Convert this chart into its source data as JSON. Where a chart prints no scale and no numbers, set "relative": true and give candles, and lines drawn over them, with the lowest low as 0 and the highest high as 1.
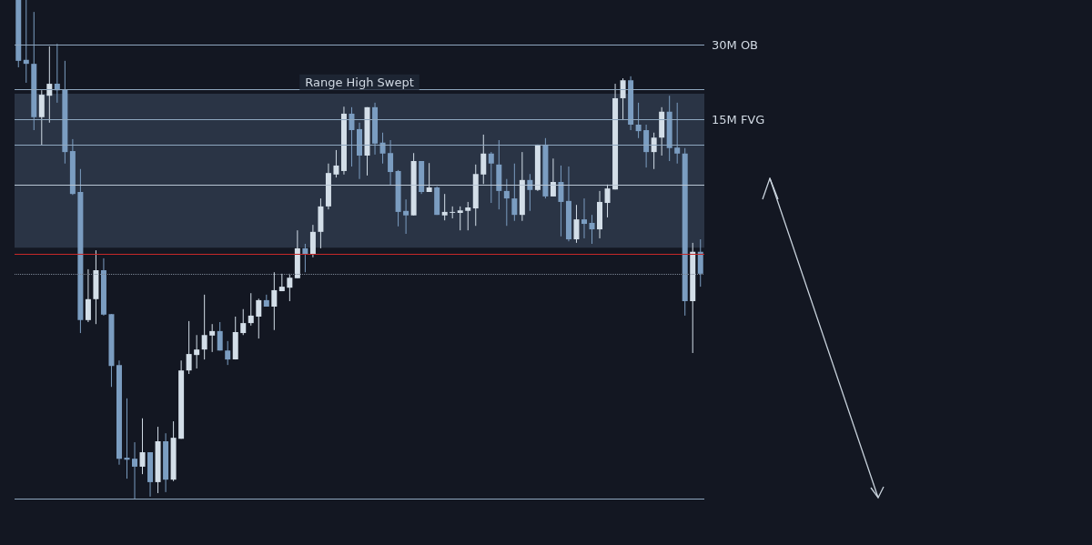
{
  "chart_data": {
    "type": "candlestick",
    "relative": true,
    "categories": [
      null,
      null,
      null,
      null,
      null,
      null,
      null,
      null,
      null,
      null,
      null,
      null,
      null,
      null,
      null,
      null,
      null,
      null,
      null,
      null,
      null,
      null,
      null,
      null,
      null,
      null,
      null,
      null,
      null,
      null,
      null,
      null,
      null,
      null,
      null,
      null,
      null,
      null,
      null,
      null,
      null,
      null,
      null,
      null,
      null,
      null,
      null,
      null,
      null,
      null,
      null,
      null,
      null,
      null,
      null,
      null,
      null,
      null,
      null,
      null,
      null,
      null,
      null,
      null,
      null,
      null,
      null,
      null,
      null,
      null,
      null,
      null,
      null,
      null,
      null,
      null,
      null,
      null,
      null,
      null,
      null,
      null,
      null,
      null,
      null,
      null,
      null,
      null,
      null
    ],
    "ohlc": [
      [
        1,
        1,
        0.865,
        0.878
      ],
      [
        0.88,
        1,
        0.834,
        0.872
      ],
      [
        0.872,
        0.976,
        0.739,
        0.765
      ],
      [
        0.765,
        0.819,
        0.708,
        0.81
      ],
      [
        0.808,
        0.907,
        0.754,
        0.832
      ],
      [
        0.832,
        0.912,
        0.794,
        0.819
      ],
      [
        0.821,
        0.878,
        0.672,
        0.695
      ],
      [
        0.697,
        0.721,
        0.609,
        0.611
      ],
      [
        0.615,
        0.661,
        0.332,
        0.358
      ],
      [
        0.358,
        0.46,
        0.354,
        0.4
      ],
      [
        0.4,
        0.498,
        0.35,
        0.458
      ],
      [
        0.458,
        0.482,
        0.367,
        0.369
      ],
      [
        0.37,
        0.37,
        0.224,
        0.266
      ],
      [
        0.268,
        0.277,
        0.068,
        0.08
      ],
      [
        0.082,
        0.201,
        0.04,
        0.078
      ],
      [
        0.08,
        0.113,
        0,
        0.064
      ],
      [
        0.064,
        0.161,
        0.049,
        0.093
      ],
      [
        0.093,
        0.093,
        0.004,
        0.033
      ],
      [
        0.033,
        0.144,
        0.011,
        0.115
      ],
      [
        0.115,
        0.131,
        0.013,
        0.038
      ],
      [
        0.038,
        0.155,
        0.035,
        0.122
      ],
      [
        0.12,
        0.277,
        0.12,
        0.257
      ],
      [
        0.257,
        0.356,
        0.25,
        0.29
      ],
      [
        0.288,
        0.328,
        0.261,
        0.299
      ],
      [
        0.299,
        0.409,
        0.279,
        0.328
      ],
      [
        0.327,
        0.35,
        0.294,
        0.336
      ],
      [
        0.336,
        0.354,
        0.297,
        0.297
      ],
      [
        0.297,
        0.316,
        0.268,
        0.279
      ],
      [
        0.279,
        0.365,
        0.279,
        0.334
      ],
      [
        0.332,
        0.38,
        0.328,
        0.352
      ],
      [
        0.352,
        0.412,
        0.347,
        0.367
      ],
      [
        0.365,
        0.401,
        0.321,
        0.398
      ],
      [
        0.398,
        0.409,
        0.385,
        0.385
      ],
      [
        0.385,
        0.454,
        0.338,
        0.418
      ],
      [
        0.416,
        0.451,
        0.416,
        0.425
      ],
      [
        0.423,
        0.451,
        0.396,
        0.443
      ],
      [
        0.442,
        0.538,
        0.442,
        0.502
      ],
      [
        0.502,
        0.511,
        0.454,
        0.489
      ],
      [
        0.489,
        0.549,
        0.484,
        0.535
      ],
      [
        0.535,
        0.602,
        0.502,
        0.586
      ],
      [
        0.586,
        0.672,
        0.58,
        0.653
      ],
      [
        0.65,
        0.699,
        0.644,
        0.668
      ],
      [
        0.657,
        0.786,
        0.65,
        0.772
      ],
      [
        0.772,
        0.785,
        0.666,
        0.739
      ],
      [
        0.741,
        0.754,
        0.641,
        0.688
      ],
      [
        0.688,
        0.785,
        0.648,
        0.785
      ],
      [
        0.785,
        0.794,
        0.69,
        0.712
      ],
      [
        0.714,
        0.734,
        0.672,
        0.692
      ],
      [
        0.693,
        0.719,
        0.628,
        0.655
      ],
      [
        0.657,
        0.659,
        0.546,
        0.575
      ],
      [
        0.577,
        0.6,
        0.531,
        0.568
      ],
      [
        0.568,
        0.693,
        0.568,
        0.677
      ],
      [
        0.677,
        0.677,
        0.611,
        0.615
      ],
      [
        0.615,
        0.673,
        0.615,
        0.624
      ],
      [
        0.624,
        0.626,
        0.569,
        0.569
      ],
      [
        0.568,
        0.611,
        0.558,
        0.575
      ],
      [
        0.575,
        0.586,
        0.562,
        0.575
      ],
      [
        0.573,
        0.586,
        0.538,
        0.578
      ],
      [
        0.577,
        0.595,
        0.538,
        0.584
      ],
      [
        0.582,
        0.67,
        0.547,
        0.651
      ],
      [
        0.65,
        0.73,
        0.631,
        0.692
      ],
      [
        0.692,
        0.695,
        0.593,
        0.672
      ],
      [
        0.67,
        0.719,
        0.58,
        0.617
      ],
      [
        0.617,
        0.641,
        0.547,
        0.602
      ],
      [
        0.602,
        0.672,
        0.557,
        0.569
      ],
      [
        0.569,
        0.695,
        0.557,
        0.639
      ],
      [
        0.639,
        0.651,
        0.577,
        0.619
      ],
      [
        0.619,
        0.71,
        0.617,
        0.71
      ],
      [
        0.71,
        0.723,
        0.602,
        0.606
      ],
      [
        0.606,
        0.682,
        0.606,
        0.635
      ],
      [
        0.635,
        0.668,
        0.526,
        0.595
      ],
      [
        0.597,
        0.666,
        0.516,
        0.52
      ],
      [
        0.52,
        0.589,
        0.513,
        0.56
      ],
      [
        0.56,
        0.602,
        0.522,
        0.551
      ],
      [
        0.553,
        0.569,
        0.511,
        0.54
      ],
      [
        0.54,
        0.617,
        0.522,
        0.595
      ],
      [
        0.593,
        0.63,
        0.564,
        0.622
      ],
      [
        0.62,
        0.832,
        0.62,
        0.803
      ],
      [
        0.803,
        0.843,
        0.759,
        0.839
      ],
      [
        0.839,
        0.847,
        0.739,
        0.75
      ],
      [
        0.75,
        0.794,
        0.723,
        0.737
      ],
      [
        0.739,
        0.75,
        0.664,
        0.695
      ],
      [
        0.695,
        0.734,
        0.661,
        0.724
      ],
      [
        0.724,
        0.785,
        0.688,
        0.776
      ],
      [
        0.776,
        0.808,
        0.677,
        0.703
      ],
      [
        0.704,
        0.794,
        0.672,
        0.692
      ],
      [
        0.692,
        0.703,
        0.367,
        0.396
      ],
      [
        0.396,
        0.513,
        0.292,
        0.495
      ],
      [
        0.495,
        0.52,
        0.425,
        0.451
      ]
    ],
    "ref_lines": [
      {
        "axis": "y",
        "value": 0.912,
        "label": "30M OB",
        "color": "#8fa7bf"
      },
      {
        "axis": "y",
        "value": 0.818,
        "label": "Range High Swept",
        "color": "#8fa7bf"
      },
      {
        "axis": "y",
        "value": 0.761,
        "label": "15M FVG",
        "color": "#8fa7bf"
      },
      {
        "axis": "y",
        "value": 0.708,
        "label": null,
        "color": "#8fa7bf"
      },
      {
        "axis": "y",
        "value": 0.63,
        "label": null,
        "color": "#b8c6d4"
      },
      {
        "axis": "y",
        "value": 0.492,
        "label": null,
        "color": "#c62828"
      },
      {
        "axis": "y",
        "value": 0.453,
        "label": null,
        "color": "#7b8594",
        "line_style": "dotted"
      },
      {
        "axis": "y",
        "value": 0,
        "label": null,
        "color": "#8fa7bf"
      }
    ],
    "bands": [
      {
        "axis": "y",
        "from": 0.503,
        "to": 0.812,
        "label": null,
        "color": "#2a3445"
      }
    ]
  }
}
